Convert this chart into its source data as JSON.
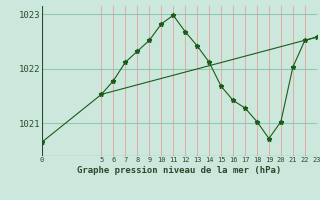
{
  "xlabel": "Graphe pression niveau de la mer (hPa)",
  "bg_color": "#cce8dc",
  "line_color": "#1a5c1a",
  "hgrid_color": "#90c8b0",
  "vgrid_color": "#e8a0a0",
  "axis_color": "#2a4a2a",
  "x_ticks": [
    0,
    5,
    6,
    7,
    8,
    9,
    10,
    11,
    12,
    13,
    14,
    15,
    16,
    17,
    18,
    19,
    20,
    21,
    22,
    23
  ],
  "xlim": [
    0,
    23
  ],
  "ylim": [
    1020.4,
    1023.15
  ],
  "y_ticks": [
    1021,
    1022,
    1023
  ],
  "series1_x": [
    0,
    5,
    6,
    7,
    8,
    9,
    10,
    11,
    12,
    13,
    14,
    15,
    16,
    17,
    18,
    19,
    20,
    21,
    22,
    23
  ],
  "series1_y": [
    1020.65,
    1021.53,
    1021.78,
    1022.12,
    1022.32,
    1022.52,
    1022.82,
    1022.98,
    1022.68,
    1022.42,
    1022.12,
    1021.68,
    1021.42,
    1021.28,
    1021.03,
    1020.72,
    1021.03,
    1022.03,
    1022.52,
    1022.58
  ],
  "series2_x": [
    5,
    23
  ],
  "series2_y": [
    1021.53,
    1022.58
  ]
}
